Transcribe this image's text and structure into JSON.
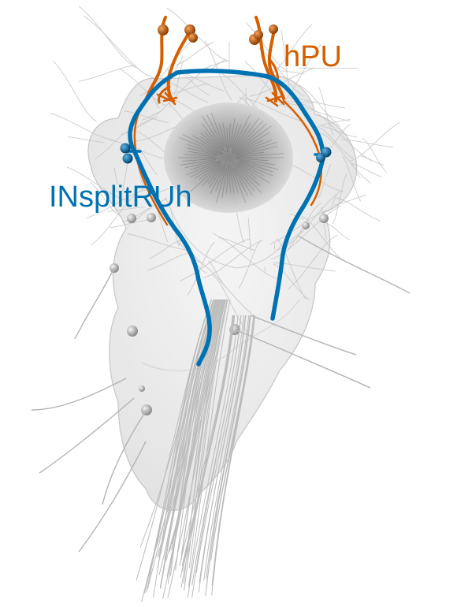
{
  "labels": {
    "hpu": {
      "text": "hPU",
      "color": "#d55e00"
    },
    "insplit": {
      "text": "INsplitRUh",
      "color": "#0072b2"
    }
  },
  "colors": {
    "hpu": "#d55e00",
    "hpu_dark": "#8a3c00",
    "insplit": "#0072b2",
    "insplit_dark": "#00456d",
    "body_fill": "#e6e6e6",
    "body_stroke": "#b8b8b8",
    "background_neurites": "#c6c6c6",
    "neuropil": "#8f8f8f",
    "soma": "#a0a0a0"
  },
  "icons": {
    "soma": "sphere-soma",
    "neuropil": "circular-neuropil"
  }
}
